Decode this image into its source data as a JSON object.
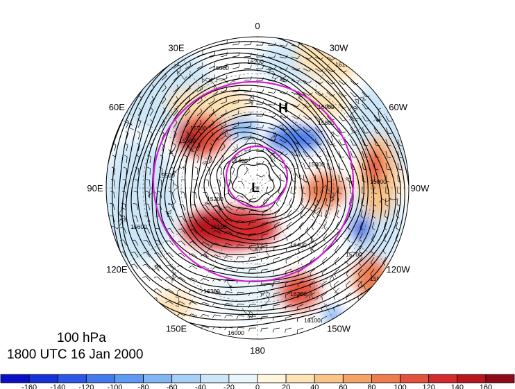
{
  "map": {
    "projection": "north-polar-stereographic",
    "longitude_labels": [
      {
        "text": "0",
        "lon": 0
      },
      {
        "text": "30W",
        "lon": -30
      },
      {
        "text": "60W",
        "lon": -60
      },
      {
        "text": "90W",
        "lon": -90
      },
      {
        "text": "120W",
        "lon": -120
      },
      {
        "text": "150W",
        "lon": -150
      },
      {
        "text": "180",
        "lon": 180
      },
      {
        "text": "150E",
        "lon": 150
      },
      {
        "text": "120E",
        "lon": 120
      },
      {
        "text": "90E",
        "lon": 90
      },
      {
        "text": "60E",
        "lon": 60
      },
      {
        "text": "30E",
        "lon": 30
      }
    ],
    "pressure_centers": [
      {
        "symbol": "H",
        "kind": "high"
      },
      {
        "symbol": "L",
        "kind": "low"
      }
    ],
    "contour_labels": [
      "16400",
      "16300",
      "16200",
      "16100",
      "16000",
      "15900",
      "15800",
      "15700",
      "15600",
      "15500",
      "15400",
      "15300",
      "15200",
      "15100",
      "15000"
    ],
    "colors": {
      "contour": "#000000",
      "highlight_circles": "#d21cd6",
      "positive_anomaly": "#d73027",
      "negative_anomaly": "#1f58d8"
    }
  },
  "caption": {
    "level": "100 hPa",
    "time": "1800 UTC 16 Jan 2000"
  },
  "colorbar": {
    "tick_labels": [
      "-160",
      "-140",
      "-120",
      "-100",
      "-80",
      "-60",
      "-40",
      "-20",
      "0",
      "20",
      "40",
      "60",
      "80",
      "100",
      "120",
      "140",
      "160"
    ],
    "colors": [
      "#0a0fc8",
      "#1633d9",
      "#2c56e6",
      "#4479ee",
      "#5f9af2",
      "#80b6f4",
      "#a6d0f6",
      "#cde7f8",
      "#eaf6fb",
      "#fff6dc",
      "#fde2b4",
      "#f9c389",
      "#f4a266",
      "#ee7c4f",
      "#e5513c",
      "#d52a2d",
      "#b8151f",
      "#8e0a17"
    ]
  }
}
